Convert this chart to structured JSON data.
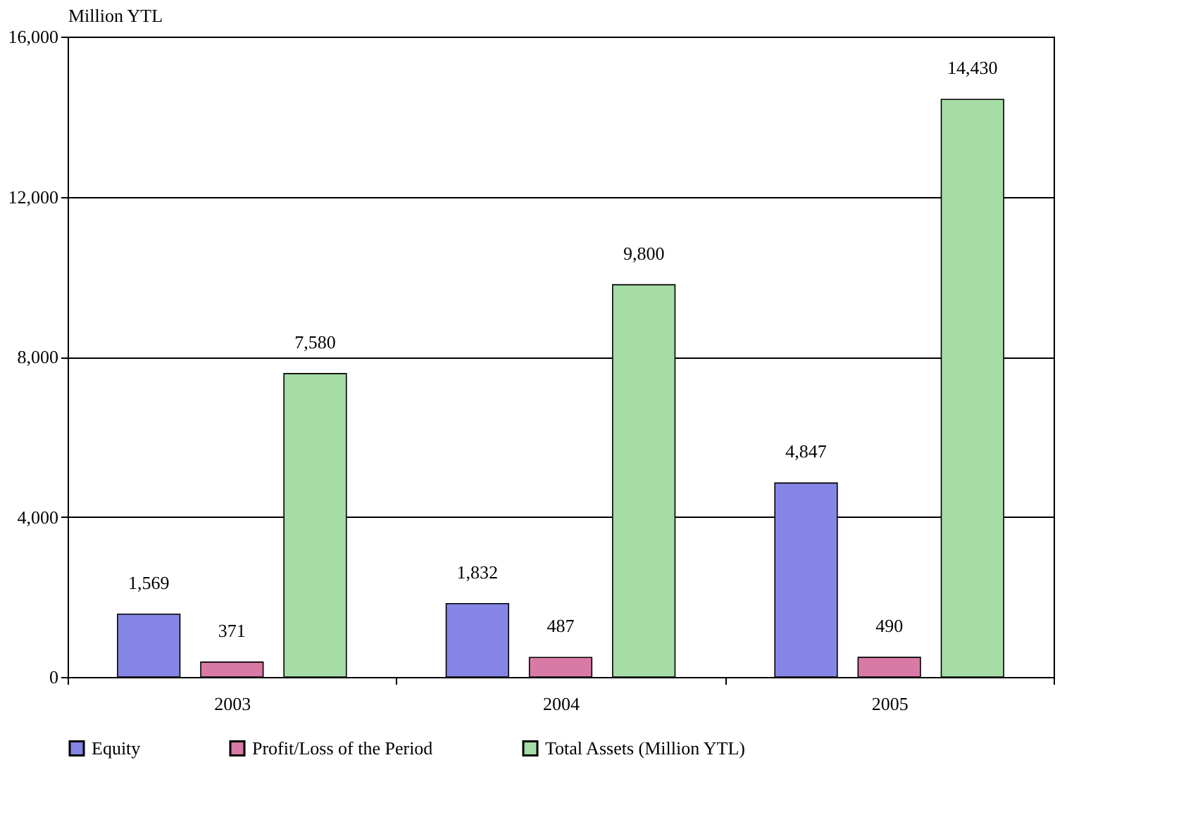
{
  "chart_data": {
    "type": "bar",
    "ylabel": "Million YTL",
    "categories": [
      "2003",
      "2004",
      "2005"
    ],
    "series": [
      {
        "name": "Equity",
        "color": "#8585e6",
        "values": [
          1569,
          1832,
          4847
        ],
        "value_labels": [
          "1,569",
          "1,832",
          "4,847"
        ]
      },
      {
        "name": "Profit/Loss of the Period",
        "color": "#d97aa6",
        "values": [
          371,
          487,
          490
        ],
        "value_labels": [
          "371",
          "487",
          "490"
        ]
      },
      {
        "name": "Total Assets (Million YTL)",
        "color": "#a6dca6",
        "values": [
          7580,
          9800,
          14430
        ],
        "value_labels": [
          "7,580",
          "9,800",
          "14,430"
        ]
      }
    ],
    "ylim": [
      0,
      16000
    ],
    "yticks": [
      {
        "value": 0,
        "label": "0"
      },
      {
        "value": 4000,
        "label": "4,000"
      },
      {
        "value": 8000,
        "label": "8,000"
      },
      {
        "value": 12000,
        "label": "12,000"
      },
      {
        "value": 16000,
        "label": "16,000"
      }
    ],
    "grid": "y",
    "legend": "bottom"
  }
}
